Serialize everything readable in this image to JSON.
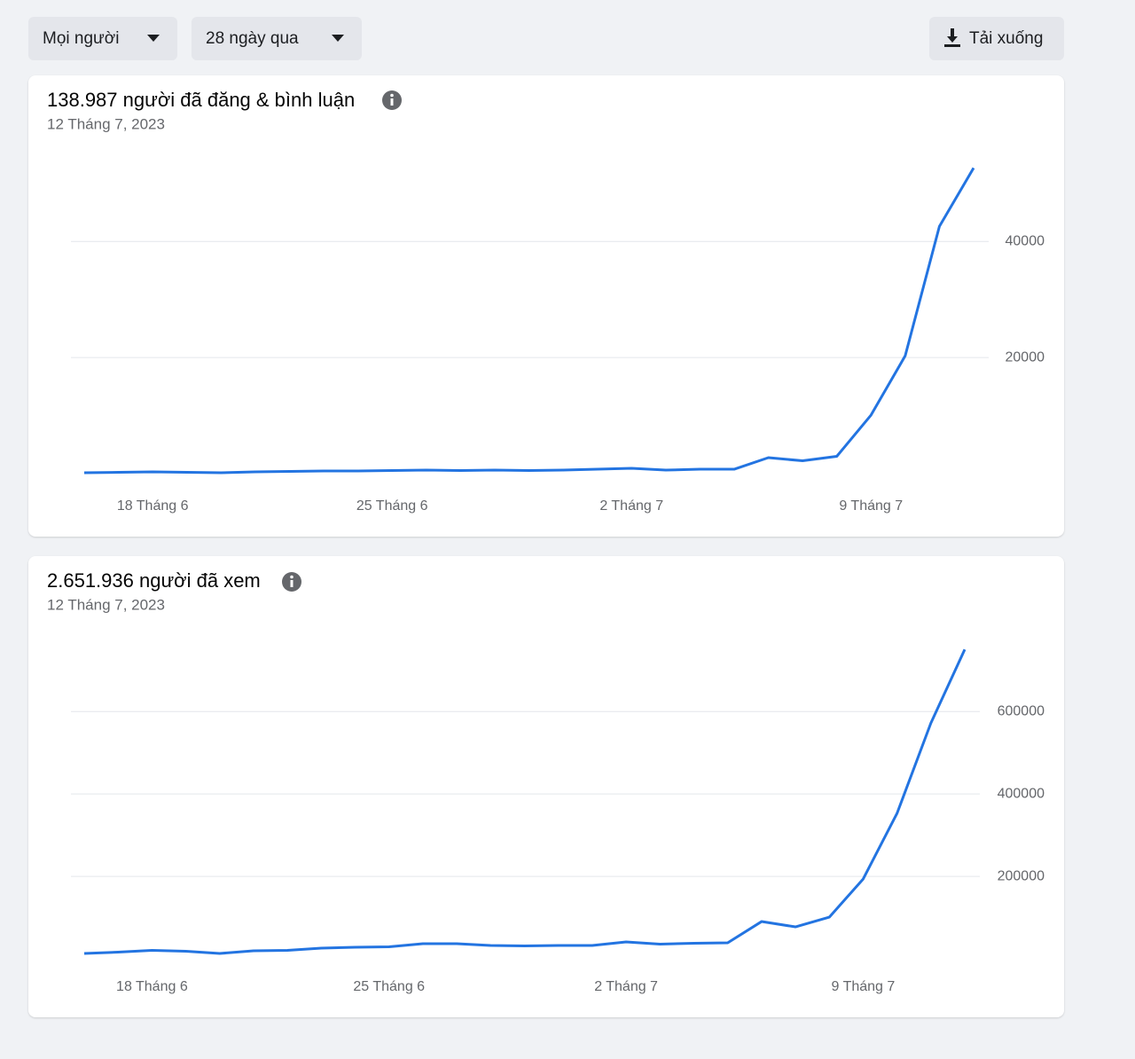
{
  "toolbar": {
    "audience": "Mọi người",
    "range": "28 ngày qua",
    "download": "Tải xuống"
  },
  "chart_data": [
    {
      "type": "line",
      "title": "138.987 người đã đăng & bình luận",
      "subtitle": "12 Tháng 7, 2023",
      "categories": [
        null,
        null,
        "18 Tháng 6",
        null,
        null,
        null,
        null,
        null,
        null,
        "25 Tháng 6",
        null,
        null,
        null,
        null,
        null,
        null,
        "2 Tháng 7",
        null,
        null,
        null,
        null,
        null,
        null,
        "9 Tháng 7",
        null,
        null,
        null
      ],
      "series": [
        {
          "name": null,
          "color": "#2374e1",
          "values": [
            150,
            230,
            300,
            230,
            150,
            300,
            380,
            460,
            460,
            530,
            610,
            530,
            610,
            530,
            610,
            760,
            920,
            610,
            760,
            760,
            2750,
            2210,
            2980,
            10080,
            20300,
            42600,
            52670
          ]
        }
      ],
      "ylim": [
        0,
        57000
      ],
      "yticks": [
        20000,
        40000
      ],
      "grid": true
    },
    {
      "type": "line",
      "title": "2.651.936 người đã xem",
      "subtitle": "12 Tháng 7, 2023",
      "categories": [
        null,
        null,
        "18 Tháng 6",
        null,
        null,
        null,
        null,
        null,
        null,
        "25 Tháng 6",
        null,
        null,
        null,
        null,
        null,
        null,
        "2 Tháng 7",
        null,
        null,
        null,
        null,
        null,
        null,
        "9 Tháng 7",
        null,
        null,
        null
      ],
      "series": [
        {
          "name": null,
          "color": "#2374e1",
          "values": [
            12900,
            16100,
            20400,
            18300,
            12900,
            19400,
            20400,
            25800,
            28000,
            29000,
            36600,
            36600,
            32300,
            31200,
            32300,
            32300,
            40900,
            35500,
            37600,
            38700,
            90300,
            77400,
            101000,
            193500,
            352700,
            572000,
            750500
          ]
        }
      ],
      "ylim": [
        0,
        820000
      ],
      "yticks": [
        200000,
        400000,
        600000
      ],
      "grid": true
    }
  ]
}
